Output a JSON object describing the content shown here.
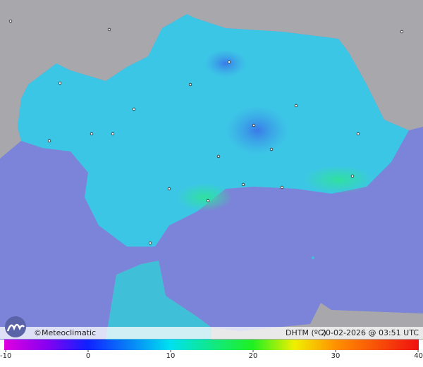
{
  "footer": {
    "credit": "©Meteoclimatic",
    "variable": "DHTM (ºC)",
    "timestamp": "20-02-2026 @ 03:51 UTC"
  },
  "colorbar": {
    "ticks": [
      -10,
      0,
      10,
      20,
      30,
      40
    ]
  }
}
